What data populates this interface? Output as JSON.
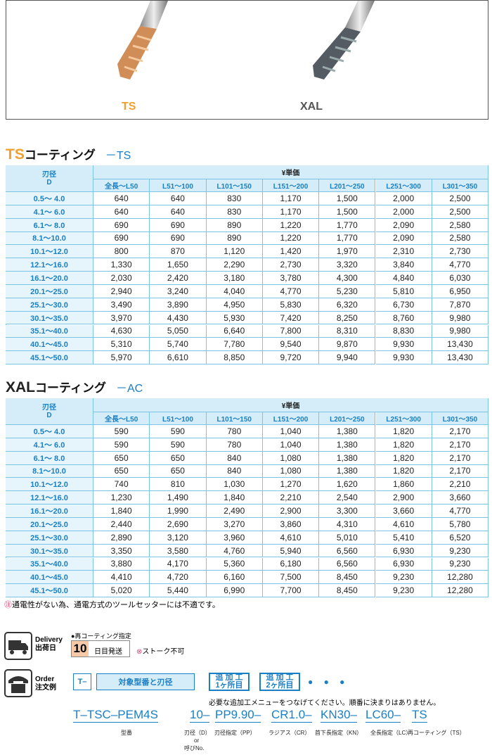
{
  "images": {
    "left_label": "TS",
    "right_label": "XAL"
  },
  "columns": {
    "corner_1": "刃径",
    "corner_2": "D",
    "group": "¥単価",
    "lengths": [
      "全長～L50",
      "L51～100",
      "L101～150",
      "L151～200",
      "L201～250",
      "L251～300",
      "L301～350"
    ]
  },
  "tables": [
    {
      "code": "TS",
      "name": "コーティング",
      "suffix": "－TS",
      "rows": [
        [
          "0.5～ 4.0",
          "640",
          "640",
          "830",
          "1,170",
          "1,500",
          "2,000",
          "2,500"
        ],
        [
          "4.1～ 6.0",
          "640",
          "640",
          "830",
          "1,170",
          "1,500",
          "2,000",
          "2,500"
        ],
        [
          "6.1～ 8.0",
          "690",
          "690",
          "890",
          "1,220",
          "1,770",
          "2,090",
          "2,580"
        ],
        [
          "8.1～10.0",
          "690",
          "690",
          "890",
          "1,220",
          "1,770",
          "2,090",
          "2,580"
        ],
        [
          "10.1～12.0",
          "800",
          "870",
          "1,120",
          "1,420",
          "1,970",
          "2,310",
          "2,730"
        ],
        [
          "12.1～16.0",
          "1,330",
          "1,650",
          "2,290",
          "2,730",
          "3,320",
          "3,840",
          "4,770"
        ],
        [
          "16.1～20.0",
          "2,030",
          "2,420",
          "3,180",
          "3,780",
          "4,300",
          "4,840",
          "6,030"
        ],
        [
          "20.1～25.0",
          "2,940",
          "3,240",
          "4,040",
          "4,770",
          "5,230",
          "5,810",
          "6,950"
        ],
        [
          "25.1～30.0",
          "3,490",
          "3,890",
          "4,950",
          "5,830",
          "6,320",
          "6,730",
          "7,870"
        ],
        [
          "30.1～35.0",
          "3,970",
          "4,430",
          "5,930",
          "7,420",
          "8,250",
          "8,760",
          "9,980"
        ],
        [
          "35.1～40.0",
          "4,630",
          "5,050",
          "6,640",
          "7,800",
          "8,310",
          "8,830",
          "9,980"
        ],
        [
          "40.1～45.0",
          "5,310",
          "5,740",
          "7,780",
          "9,540",
          "9,870",
          "9,930",
          "13,430"
        ],
        [
          "45.1～50.0",
          "5,970",
          "6,610",
          "8,850",
          "9,720",
          "9,940",
          "9,930",
          "13,430"
        ]
      ]
    },
    {
      "code": "XAL",
      "name": "コーティング",
      "suffix": "－AC",
      "rows": [
        [
          "0.5～ 4.0",
          "590",
          "590",
          "780",
          "1,040",
          "1,380",
          "1,820",
          "2,170"
        ],
        [
          "4.1～ 6.0",
          "590",
          "590",
          "780",
          "1,040",
          "1,380",
          "1,820",
          "2,170"
        ],
        [
          "6.1～ 8.0",
          "650",
          "650",
          "840",
          "1,080",
          "1,380",
          "1,820",
          "2,170"
        ],
        [
          "8.1～10.0",
          "650",
          "650",
          "840",
          "1,080",
          "1,380",
          "1,820",
          "2,170"
        ],
        [
          "10.1～12.0",
          "740",
          "810",
          "1,030",
          "1,270",
          "1,620",
          "1,860",
          "2,210"
        ],
        [
          "12.1～16.0",
          "1,230",
          "1,490",
          "1,840",
          "2,210",
          "2,540",
          "2,900",
          "3,660"
        ],
        [
          "16.1～20.0",
          "1,840",
          "1,990",
          "2,490",
          "2,900",
          "3,300",
          "3,660",
          "4,770"
        ],
        [
          "20.1～25.0",
          "2,440",
          "2,690",
          "3,270",
          "3,860",
          "4,310",
          "4,610",
          "5,780"
        ],
        [
          "25.1～30.0",
          "2,890",
          "3,120",
          "3,960",
          "4,610",
          "5,010",
          "5,410",
          "6,520"
        ],
        [
          "30.1～35.0",
          "3,350",
          "3,580",
          "4,760",
          "5,940",
          "6,560",
          "6,930",
          "9,230"
        ],
        [
          "35.1～40.0",
          "3,880",
          "4,170",
          "5,360",
          "6,180",
          "6,560",
          "6,930",
          "9,230"
        ],
        [
          "40.1～45.0",
          "4,410",
          "4,720",
          "6,160",
          "7,500",
          "8,450",
          "9,230",
          "12,280"
        ],
        [
          "45.1～50.0",
          "5,020",
          "5,440",
          "6,990",
          "7,700",
          "8,450",
          "9,230",
          "12,280"
        ]
      ]
    }
  ],
  "note": "通電性がない為、通電方式のツールセッターには不適です。",
  "delivery": {
    "title_en": "Delivery",
    "title_ja": "出荷日",
    "option": "●再コーティング指定",
    "days": "10",
    "days_label": "日目発送",
    "no_stock": "ストーク不可"
  },
  "order": {
    "title_en": "Order",
    "title_ja": "注文例",
    "prefix": "T–",
    "base": "対象型番と刃径",
    "extra1_a": "追 加 工",
    "extra1_b": "1ヶ所目",
    "extra2_a": "追 加 工",
    "extra2_b": "2ヶ所目",
    "dots": "● ● ●",
    "hint": "必要な追加工メニューをつなげてください。順番に決まりはありません。",
    "parts": [
      "T–TSC–PEM4S",
      "10–",
      "PP9.90–",
      "CR1.0–",
      "KN30–",
      "LC60–",
      "TS"
    ],
    "labels": [
      "型番",
      "刃径（D）",
      "刃径指定（PP）",
      "ラジアス（CR）",
      "首下長指定（KN）",
      "全長指定（LC）",
      "再コーティング（TS）"
    ],
    "or": "or",
    "alt": "呼びNo."
  }
}
